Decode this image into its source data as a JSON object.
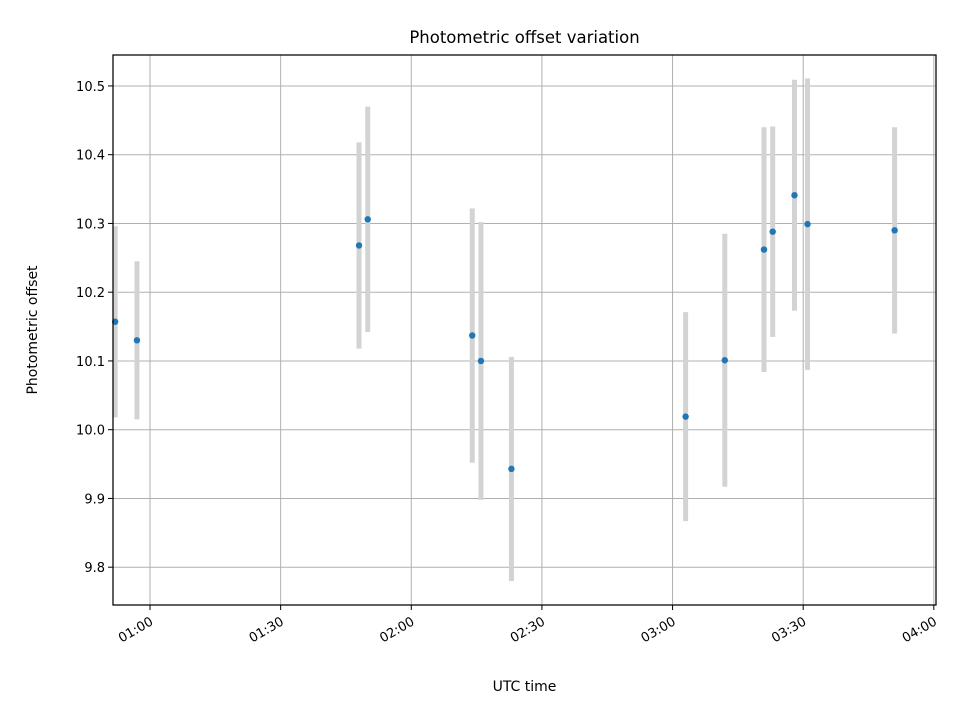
{
  "chart_data": {
    "type": "scatter",
    "title": "Photometric offset variation",
    "xlabel": "UTC time",
    "ylabel": "Photometric offset",
    "x_tick_labels": [
      "01:00",
      "01:30",
      "02:00",
      "02:30",
      "03:00",
      "03:30",
      "04:00"
    ],
    "y_tick_labels": [
      "9.8",
      "9.9",
      "10.0",
      "10.1",
      "10.2",
      "10.3",
      "10.4",
      "10.5"
    ],
    "xlim": [
      "00:51:30",
      "04:00:30"
    ],
    "ylim": [
      9.745,
      10.545
    ],
    "grid": true,
    "colors": {
      "marker": "#1f77b4",
      "errorbar": "#d3d3d3",
      "grid": "#b0b0b0"
    },
    "points": [
      {
        "time": "00:52",
        "y": 10.157,
        "err": 0.139
      },
      {
        "time": "00:57",
        "y": 10.13,
        "err": 0.115
      },
      {
        "time": "01:48",
        "y": 10.268,
        "err": 0.15
      },
      {
        "time": "01:50",
        "y": 10.306,
        "err": 0.164
      },
      {
        "time": "02:14",
        "y": 10.137,
        "err": 0.185
      },
      {
        "time": "02:16",
        "y": 10.1,
        "err": 0.202
      },
      {
        "time": "02:23",
        "y": 9.943,
        "err": 0.163
      },
      {
        "time": "03:03",
        "y": 10.019,
        "err": 0.152
      },
      {
        "time": "03:12",
        "y": 10.101,
        "err": 0.184
      },
      {
        "time": "03:21",
        "y": 10.262,
        "err": 0.178
      },
      {
        "time": "03:23",
        "y": 10.288,
        "err": 0.153
      },
      {
        "time": "03:28",
        "y": 10.341,
        "err": 0.168
      },
      {
        "time": "03:31",
        "y": 10.299,
        "err": 0.212
      },
      {
        "time": "03:51",
        "y": 10.29,
        "err": 0.15
      }
    ]
  }
}
